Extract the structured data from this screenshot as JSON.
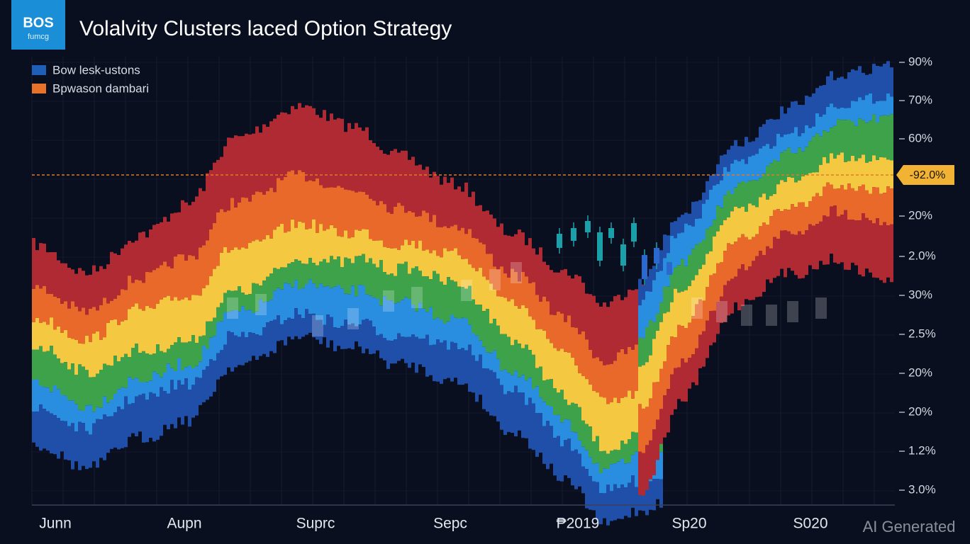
{
  "header": {
    "logo": {
      "title": "BOS",
      "subtitle": "fumcg"
    },
    "title": "Volalvity Clusters laced Option Strategy"
  },
  "legend": [
    {
      "label": "Bow lesk-ustons"
    },
    {
      "label": "Bpwason dambari"
    }
  ],
  "y_axis_labels": [
    "90%",
    "70%",
    "60%",
    "20%",
    "2.0%",
    "30%",
    "2.5%",
    "20%",
    "20%",
    "1.2%",
    "3.0%"
  ],
  "marker_label": "-92.0%",
  "x_axis_labels": [
    "Junn",
    "Aupn",
    "Suprc",
    "Sepc",
    "₱2019",
    "Sp20",
    "S020"
  ],
  "watermark": "AI Generated"
}
